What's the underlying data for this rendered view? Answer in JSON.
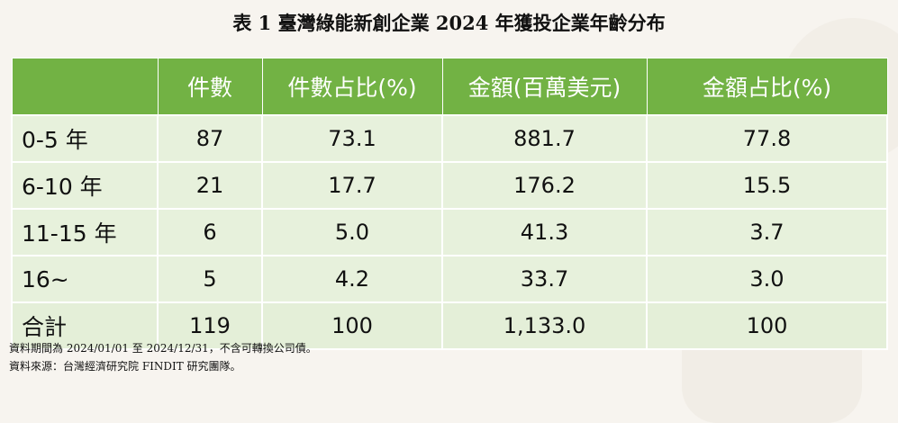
{
  "title": "表 1  臺灣綠能新創企業 2024 年獲投企業年齡分布",
  "table": {
    "headers": [
      "",
      "件數",
      "件數占比(%)",
      "金額(百萬美元)",
      "金額占比(%)"
    ],
    "rows": [
      {
        "label": "0-5 年",
        "count": "87",
        "count_pct": "73.1",
        "amount": "881.7",
        "amount_pct": "77.8"
      },
      {
        "label": "6-10 年",
        "count": "21",
        "count_pct": "17.7",
        "amount": "176.2",
        "amount_pct": "15.5"
      },
      {
        "label": "11-15 年",
        "count": "6",
        "count_pct": "5.0",
        "amount": "41.3",
        "amount_pct": "3.7"
      },
      {
        "label": "16~",
        "count": "5",
        "count_pct": "4.2",
        "amount": "33.7",
        "amount_pct": "3.0"
      },
      {
        "label": "合計",
        "count": "119",
        "count_pct": "100",
        "amount": "1,133.0",
        "amount_pct": "100"
      }
    ]
  },
  "notes": [
    "資料期間為 2024/01/01 至 2024/12/31，不含可轉換公司債。",
    "資料來源：台灣經濟研究院 FINDIT 研究團隊。"
  ],
  "colors": {
    "header_bg": "#72b244",
    "cell_bg": "#e7f1dc",
    "page_bg": "#f7f4ef"
  }
}
